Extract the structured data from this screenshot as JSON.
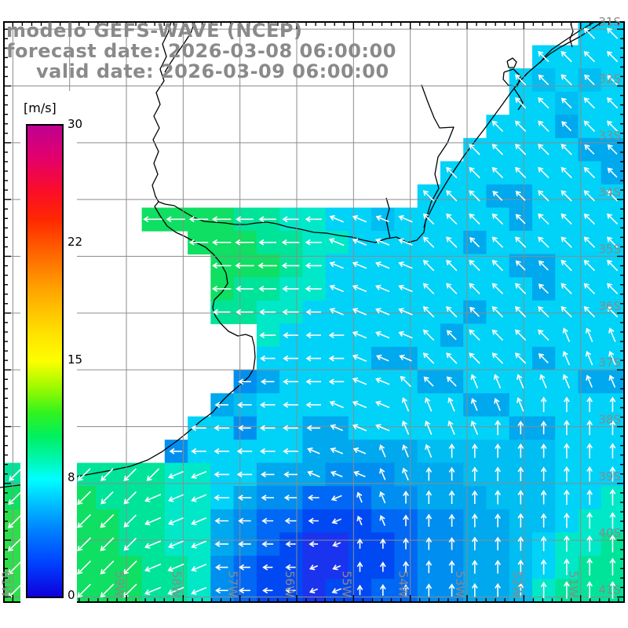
{
  "title": {
    "line1": "modelo GEFS-WAVE (NCEP)",
    "line2": "forecast date: 2026-03-08 06:00:00",
    "line3": "valid date: 2026-03-09 06:00:00"
  },
  "colorbar": {
    "unit_label": "[m/s]",
    "tick_labels": [
      "30",
      "22",
      "15",
      "8",
      "0"
    ],
    "min": 0,
    "max": 30,
    "stops": [
      [
        "#bf0091",
        0
      ],
      [
        "#e4006b",
        7
      ],
      [
        "#fb0d28",
        14
      ],
      [
        "#ff2800",
        20
      ],
      [
        "#ff6400",
        27
      ],
      [
        "#ffa500",
        35
      ],
      [
        "#ffe100",
        44
      ],
      [
        "#fcff00",
        50
      ],
      [
        "#96f900",
        56
      ],
      [
        "#31f31e",
        61
      ],
      [
        "#00f060",
        66
      ],
      [
        "#00f6b2",
        71
      ],
      [
        "#00ffff",
        75
      ],
      [
        "#00c3ff",
        80
      ],
      [
        "#0080ff",
        86
      ],
      [
        "#0040ff",
        93
      ],
      [
        "#0e00dc",
        100
      ]
    ]
  },
  "axes": {
    "lon_labels": [
      {
        "label": "61W",
        "deg": 61
      },
      {
        "label": "60W",
        "deg": 60
      },
      {
        "label": "59W",
        "deg": 59
      },
      {
        "label": "58W",
        "deg": 58
      },
      {
        "label": "57W",
        "deg": 57
      },
      {
        "label": "56W",
        "deg": 56
      },
      {
        "label": "55W",
        "deg": 55
      },
      {
        "label": "54W",
        "deg": 54
      },
      {
        "label": "53W",
        "deg": 53
      },
      {
        "label": "52W",
        "deg": 52
      },
      {
        "label": "51W",
        "deg": 51
      }
    ],
    "lat_labels": [
      {
        "label": "31S",
        "deg": 31
      },
      {
        "label": "32S",
        "deg": 32
      },
      {
        "label": "33S",
        "deg": 33
      },
      {
        "label": "34S",
        "deg": 34
      },
      {
        "label": "35S",
        "deg": 35
      },
      {
        "label": "36S",
        "deg": 36
      },
      {
        "label": "37S",
        "deg": 37
      },
      {
        "label": "38S",
        "deg": 38
      },
      {
        "label": "39S",
        "deg": 39
      },
      {
        "label": "40S",
        "deg": 40
      },
      {
        "label": "41S",
        "deg": 41
      }
    ],
    "grid_color": "#8c8c8c",
    "label_color": "#8a8a8a"
  },
  "wind_field": {
    "cols": 27,
    "rows": 25,
    "arrow_color": "#ffffff",
    "palette": {
      "a": "#00d2f8",
      "c": "#00bdf2",
      "d": "#00a8ee",
      "e": "#008ff0",
      "f": "#0068f4",
      "g": "#0049f2",
      "h": "#1a33ee",
      "j": "#00e8c8",
      "k": "#00e49a",
      "l": "#0fdf62",
      "m": "#2cdf4a"
    },
    "speeds": {
      "a": 7.8,
      "c": 7.2,
      "d": 6.7,
      "e": 6.1,
      "f": 5.2,
      "g": 4.3,
      "h": 3.4,
      "j": 8.7,
      "k": 9.5,
      "l": 10.5,
      "m": 11.2
    },
    "dir_codes": {
      "3": 67.5,
      "4": 90,
      "5": 112.5,
      "6": 135,
      "7": 157.5,
      "8": 180,
      "9": 202.5,
      "a": 225
    },
    "cells": [
      ".........................aa",
      ".......................aaaa",
      "......................acaca",
      "......................aacaa",
      ".....................aaadaa",
      "....................aaaaadd",
      "...................aaaaaaad",
      "..................aaaddaaaa",
      "......llllkkjjaacaaaaadaaaa",
      "........lllkkjjaaaaadaaaaaa",
      ".........lllkjaaaaaaaaddaaa",
      ".........lkkjjaaaaaaaaadaaa",
      ".........kkjjaaaaaaadaaaaaa",
      "...........jaaaaaaadaaaaaaa",
      "...........aaaaaddaaaaadaaa",
      "..........edaaaaaaddaaaaadd",
      ".........dcaaaaaaaaaddaaaaa",
      "........aaeaaddaaaaaaaddaaa",
      ".......eaaaaadddddccccccaaa",
      "kkkkkkkjjaadddeeedddccccaaa",
      "llllkkkjjadeefffeedddcccaaj",
      "mllllkkjjdeffgggffeeddccajj",
      "mmlllkkjjdefghhggfeeddcajjk",
      "mmllllkkjefgghhggfeeddcajkk",
      "mmmlllkkjefgghggffeeddcjkkk"
    ],
    "dirs": [
      ".........................66",
      ".......................6666",
      "......................66666",
      "......................66666",
      ".....................666666",
      "....................6666666",
      "...................66666666",
      "..................666666666",
      "......888888887777666666666",
      "........8888887777666666666",
      ".........888887777666666666",
      ".........888887777666666666",
      ".........888887777666666666",
      "...........8888777666666555",
      "...........8888777666666555",
      "..........88888776665555555",
      ".........888887775555554444",
      "........8888887775555444444",
      ".......88888877755544444444",
      "aaaaaaa99888877755444444444",
      "aaaaaa999888889554444444444",
      "aaaaaa999888889554444444444",
      "aaaaaa999888889444444444444",
      "aaaaaa999888899444444444444",
      "aaaaaa999888899444444444444"
    ]
  },
  "coastlines": {
    "stroke": "#000000",
    "paths": [
      [
        [
          767,
          28
        ],
        [
          740,
          46
        ],
        [
          714,
          60
        ],
        [
          700,
          69
        ],
        [
          686,
          81
        ],
        [
          672,
          93
        ],
        [
          660,
          106
        ],
        [
          650,
          119
        ],
        [
          640,
          133
        ],
        [
          629,
          148
        ],
        [
          618,
          163
        ],
        [
          608,
          176
        ],
        [
          599,
          188
        ],
        [
          590,
          200
        ],
        [
          582,
          212
        ],
        [
          574,
          224
        ],
        [
          566,
          237
        ],
        [
          557,
          252
        ],
        [
          549,
          268
        ],
        [
          542,
          282
        ],
        [
          540,
          296
        ],
        [
          531,
          306
        ],
        [
          519,
          309
        ],
        [
          505,
          302
        ],
        [
          492,
          304
        ],
        [
          478,
          309
        ],
        [
          463,
          306
        ],
        [
          448,
          302
        ],
        [
          432,
          300
        ],
        [
          416,
          297
        ],
        [
          400,
          296
        ],
        [
          383,
          292
        ],
        [
          366,
          289
        ],
        [
          352,
          285
        ],
        [
          340,
          283
        ],
        [
          327,
          284
        ],
        [
          313,
          286
        ],
        [
          300,
          286
        ],
        [
          286,
          284
        ],
        [
          272,
          283
        ],
        [
          260,
          282
        ],
        [
          247,
          277
        ],
        [
          235,
          270
        ],
        [
          222,
          262
        ],
        [
          210,
          260
        ],
        [
          202,
          257
        ],
        [
          197,
          263
        ],
        [
          204,
          275
        ],
        [
          213,
          288
        ],
        [
          224,
          296
        ],
        [
          235,
          301
        ],
        [
          248,
          308
        ],
        [
          262,
          315
        ],
        [
          272,
          324
        ],
        [
          281,
          335
        ],
        [
          288,
          348
        ],
        [
          290,
          361
        ],
        [
          283,
          372
        ],
        [
          273,
          382
        ],
        [
          271,
          392
        ],
        [
          274,
          402
        ],
        [
          281,
          412
        ],
        [
          291,
          422
        ],
        [
          303,
          428
        ],
        [
          313,
          426
        ],
        [
          321,
          429
        ],
        [
          324,
          441
        ],
        [
          325,
          455
        ],
        [
          323,
          470
        ],
        [
          317,
          480
        ],
        [
          305,
          491
        ],
        [
          293,
          501
        ],
        [
          283,
          511
        ],
        [
          271,
          525
        ],
        [
          255,
          537
        ],
        [
          240,
          550
        ],
        [
          225,
          562
        ],
        [
          207,
          575
        ],
        [
          188,
          586
        ],
        [
          166,
          594
        ],
        [
          142,
          599
        ],
        [
          115,
          604
        ],
        [
          85,
          609
        ],
        [
          55,
          614
        ],
        [
          25,
          618
        ],
        [
          0,
          621
        ]
      ],
      [
        [
          218,
          28
        ],
        [
          214,
          42
        ],
        [
          207,
          56
        ],
        [
          212,
          72
        ],
        [
          204,
          88
        ],
        [
          209,
          103
        ],
        [
          199,
          118
        ],
        [
          204,
          133
        ],
        [
          196,
          148
        ],
        [
          203,
          163
        ],
        [
          195,
          178
        ],
        [
          202,
          193
        ],
        [
          196,
          208
        ],
        [
          201,
          222
        ],
        [
          194,
          236
        ],
        [
          198,
          250
        ],
        [
          202,
          257
        ]
      ],
      [
        [
          248,
          28
        ],
        [
          243,
          42
        ],
        [
          234,
          56
        ],
        [
          224,
          70
        ],
        [
          216,
          82
        ],
        [
          210,
          92
        ]
      ],
      [
        [
          537,
          108
        ],
        [
          545,
          130
        ],
        [
          553,
          150
        ],
        [
          560,
          163
        ],
        [
          578,
          162
        ],
        [
          570,
          182
        ],
        [
          558,
          200
        ],
        [
          554,
          222
        ],
        [
          559,
          240
        ],
        [
          549,
          258
        ],
        [
          544,
          275
        ],
        [
          540,
          290
        ]
      ],
      [
        [
          646,
          78
        ],
        [
          653,
          74
        ],
        [
          658,
          79
        ],
        [
          655,
          86
        ],
        [
          648,
          86
        ],
        [
          646,
          78
        ]
      ],
      [
        [
          642,
          92
        ],
        [
          654,
          88
        ],
        [
          663,
          97
        ],
        [
          659,
          110
        ],
        [
          648,
          109
        ],
        [
          641,
          101
        ],
        [
          642,
          92
        ]
      ],
      [
        [
          655,
          113
        ],
        [
          661,
          122
        ],
        [
          666,
          131
        ],
        [
          660,
          140
        ]
      ],
      [
        [
          757,
          28
        ],
        [
          737,
          40
        ],
        [
          719,
          52
        ],
        [
          703,
          63
        ],
        [
          694,
          72
        ],
        [
          688,
          80
        ]
      ],
      [
        [
          727,
          30
        ],
        [
          730,
          40
        ],
        [
          726,
          50
        ],
        [
          729,
          60
        ]
      ],
      [
        [
          492,
          252
        ],
        [
          496,
          266
        ],
        [
          492,
          280
        ],
        [
          495,
          295
        ],
        [
          497,
          304
        ]
      ]
    ]
  }
}
